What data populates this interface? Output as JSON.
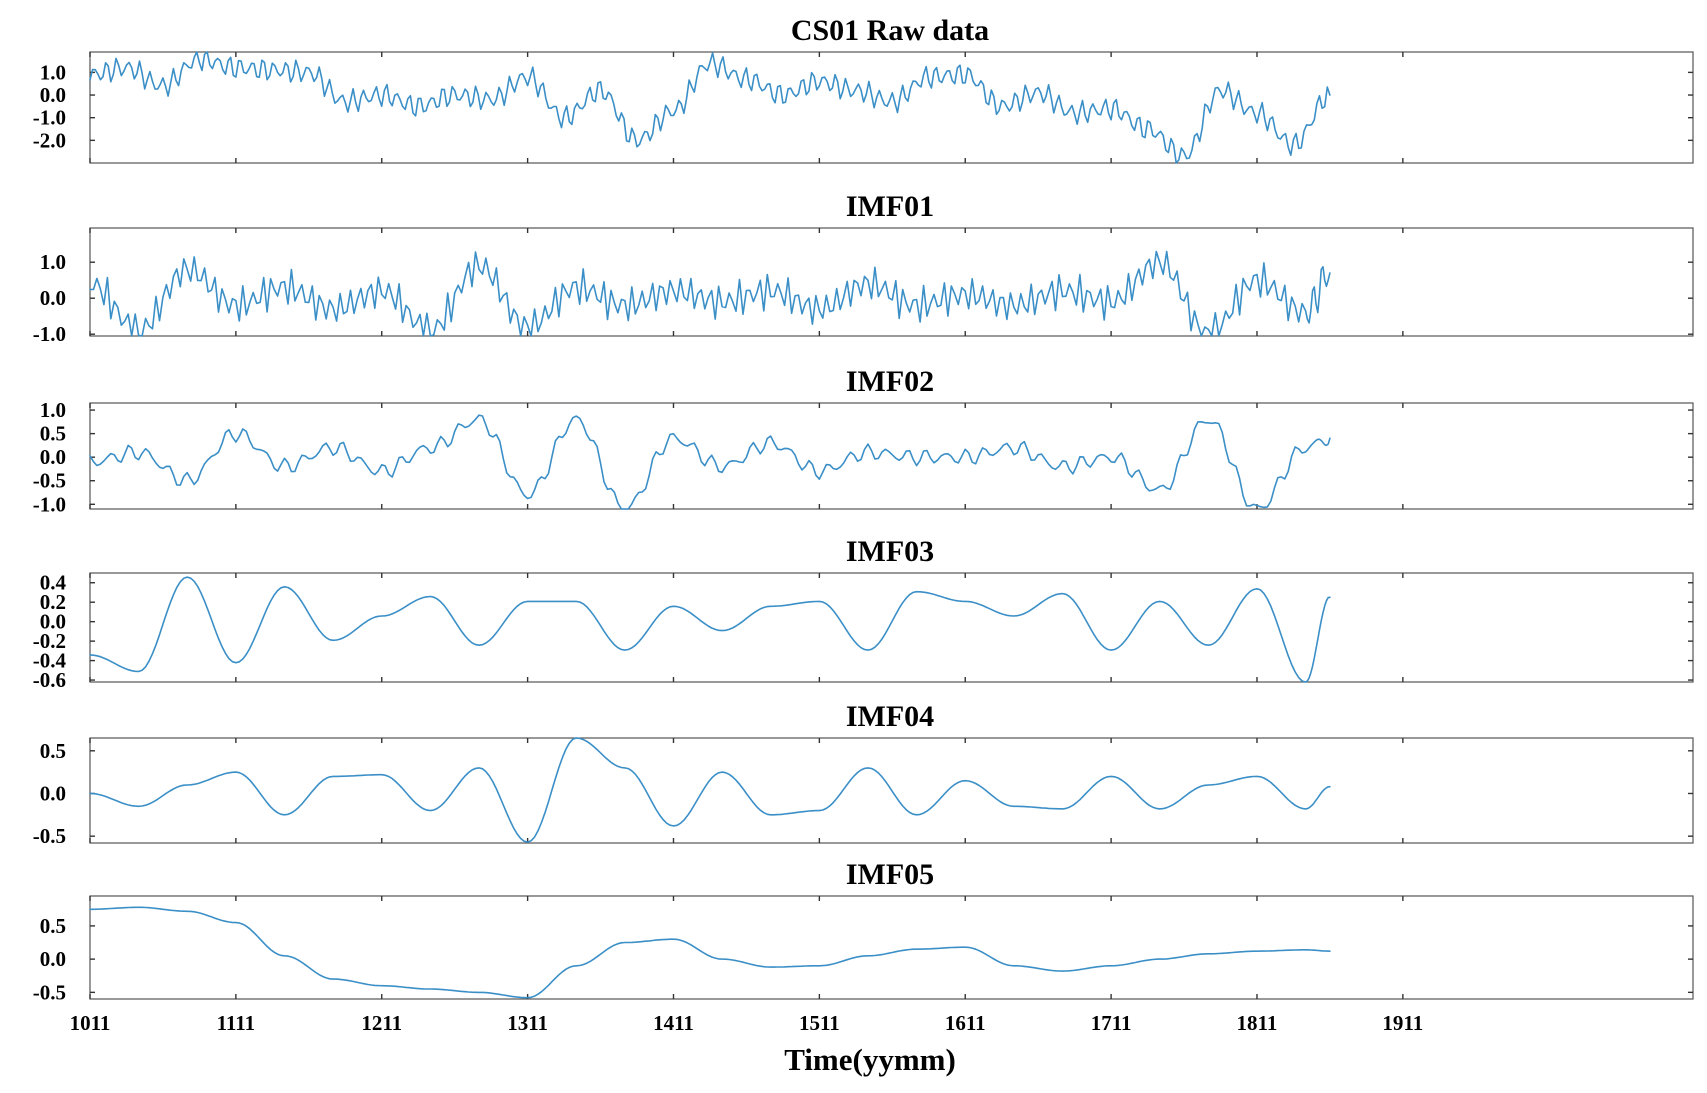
{
  "figure": {
    "xlabel": "Time(yymm)",
    "x_tick_labels": [
      "1011",
      "1111",
      "1211",
      "1311",
      "1411",
      "1511",
      "1611",
      "1711",
      "1811",
      "1911"
    ],
    "line_color": "#3b8fc7"
  },
  "chart_data": [
    {
      "type": "line",
      "title": "CS01 Raw data",
      "xlabel": "",
      "ylabel": "",
      "x_tick_labels": [
        "1011",
        "1111",
        "1211",
        "1311",
        "1411",
        "1511",
        "1611",
        "1711",
        "1811",
        "1911"
      ],
      "y_ticks": [
        1.0,
        0.0,
        -1.0,
        -2.0
      ],
      "y_tick_labels": [
        "1.0",
        "0.0",
        "-1.0",
        "-2.0"
      ],
      "ylim": [
        -3.0,
        1.9
      ],
      "grid": false,
      "series": [
        {
          "x": [
            "1011",
            "1102",
            "1105",
            "1108",
            "1111",
            "1202",
            "1205",
            "1208",
            "1211",
            "1302",
            "1305",
            "1308",
            "1311",
            "1402",
            "1405",
            "1408",
            "1411",
            "1502",
            "1505",
            "1508",
            "1511",
            "1602",
            "1605",
            "1608",
            "1611",
            "1702",
            "1705",
            "1708",
            "1711",
            "1802",
            "1805",
            "1808",
            "1811",
            "1902",
            "1905"
          ],
          "values": [
            0.9,
            1.2,
            0.4,
            1.6,
            1.2,
            1.1,
            1.0,
            -0.3,
            0.0,
            -0.5,
            0.0,
            -0.2,
            0.8,
            -1.0,
            0.2,
            -2.0,
            -0.7,
            1.4,
            0.7,
            0.0,
            0.6,
            0.2,
            -0.3,
            0.8,
            0.9,
            -0.5,
            0.1,
            -0.8,
            -0.6,
            -1.5,
            -2.7,
            0.2,
            -0.8,
            -2.2,
            0.0
          ]
        }
      ]
    },
    {
      "type": "line",
      "title": "IMF01",
      "xlabel": "",
      "ylabel": "",
      "x_tick_labels": [
        "1011",
        "1111",
        "1211",
        "1311",
        "1411",
        "1511",
        "1611",
        "1711",
        "1811",
        "1911"
      ],
      "y_ticks": [
        1.0,
        0.0,
        -1.0
      ],
      "y_tick_labels": [
        "1.0",
        "0.0",
        "-1.0"
      ],
      "ylim": [
        -1.05,
        1.95
      ],
      "grid": false,
      "series": [
        {
          "x": [
            "1011",
            "1103",
            "1107",
            "1111",
            "1203",
            "1207",
            "1211",
            "1303",
            "1307",
            "1311",
            "1403",
            "1407",
            "1411",
            "1503",
            "1507",
            "1511",
            "1603",
            "1607",
            "1611",
            "1703",
            "1707",
            "1711",
            "1803",
            "1807",
            "1811",
            "1903",
            "1905"
          ],
          "values": [
            0.4,
            -0.9,
            0.8,
            -0.2,
            0.3,
            -0.3,
            0.2,
            -0.9,
            0.9,
            -0.8,
            0.3,
            -0.2,
            0.2,
            -0.1,
            0.2,
            -0.3,
            0.4,
            -0.2,
            0.1,
            -0.2,
            0.2,
            -0.1,
            1.0,
            -1.0,
            0.5,
            -0.4,
            0.7
          ]
        }
      ]
    },
    {
      "type": "line",
      "title": "IMF02",
      "xlabel": "",
      "ylabel": "",
      "x_tick_labels": [
        "1011",
        "1111",
        "1211",
        "1311",
        "1411",
        "1511",
        "1611",
        "1711",
        "1811",
        "1911"
      ],
      "y_ticks": [
        1.0,
        0.5,
        0.0,
        -0.5,
        -1.0
      ],
      "y_tick_labels": [
        "1.0",
        "0.5",
        "0.0",
        "-0.5",
        "-1.0"
      ],
      "ylim": [
        -1.1,
        1.15
      ],
      "grid": false,
      "series": [
        {
          "x": [
            "1011",
            "1103",
            "1107",
            "1111",
            "1203",
            "1207",
            "1211",
            "1303",
            "1307",
            "1311",
            "1403",
            "1407",
            "1411",
            "1503",
            "1507",
            "1511",
            "1603",
            "1607",
            "1611",
            "1703",
            "1707",
            "1711",
            "1803",
            "1807",
            "1811",
            "1903",
            "1905"
          ],
          "values": [
            -0.1,
            0.1,
            -0.5,
            0.5,
            -0.2,
            0.2,
            -0.3,
            0.2,
            0.8,
            -0.8,
            0.8,
            -1.1,
            0.4,
            -0.2,
            0.3,
            -0.3,
            0.1,
            0.0,
            0.0,
            0.2,
            -0.2,
            0.0,
            -0.7,
            0.8,
            -1.1,
            0.2,
            0.4
          ]
        }
      ]
    },
    {
      "type": "line",
      "title": "IMF03",
      "xlabel": "",
      "ylabel": "",
      "x_tick_labels": [
        "1011",
        "1111",
        "1211",
        "1311",
        "1411",
        "1511",
        "1611",
        "1711",
        "1811",
        "1911"
      ],
      "y_ticks": [
        0.4,
        0.2,
        0.0,
        -0.2,
        -0.4,
        -0.6
      ],
      "y_tick_labels": [
        "0.4",
        "0.2",
        "0.0",
        "-0.2",
        "-0.4",
        "-0.6"
      ],
      "ylim": [
        -0.62,
        0.5
      ],
      "grid": false,
      "series": [
        {
          "x": [
            "1011",
            "1103",
            "1107",
            "1111",
            "1203",
            "1207",
            "1211",
            "1303",
            "1307",
            "1311",
            "1403",
            "1407",
            "1411",
            "1503",
            "1507",
            "1511",
            "1603",
            "1607",
            "1611",
            "1703",
            "1707",
            "1711",
            "1803",
            "1807",
            "1811",
            "1903",
            "1905"
          ],
          "values": [
            -0.35,
            -0.52,
            0.45,
            -0.43,
            0.35,
            -0.2,
            0.05,
            0.25,
            -0.25,
            0.2,
            0.2,
            -0.3,
            0.15,
            -0.1,
            0.15,
            0.2,
            -0.3,
            0.3,
            0.2,
            0.05,
            0.28,
            -0.3,
            0.2,
            -0.25,
            0.33,
            -0.63,
            0.25
          ]
        }
      ]
    },
    {
      "type": "line",
      "title": "IMF04",
      "xlabel": "",
      "ylabel": "",
      "x_tick_labels": [
        "1011",
        "1111",
        "1211",
        "1311",
        "1411",
        "1511",
        "1611",
        "1711",
        "1811",
        "1911"
      ],
      "y_ticks": [
        0.5,
        0.0,
        -0.5
      ],
      "y_tick_labels": [
        "0.5",
        "0.0",
        "-0.5"
      ],
      "ylim": [
        -0.58,
        0.65
      ],
      "grid": false,
      "series": [
        {
          "x": [
            "1011",
            "1103",
            "1107",
            "1111",
            "1203",
            "1207",
            "1211",
            "1303",
            "1307",
            "1311",
            "1403",
            "1407",
            "1411",
            "1503",
            "1507",
            "1511",
            "1603",
            "1607",
            "1611",
            "1703",
            "1707",
            "1711",
            "1803",
            "1807",
            "1811",
            "1903",
            "1905"
          ],
          "values": [
            0.0,
            -0.15,
            0.1,
            0.25,
            -0.25,
            0.2,
            0.22,
            -0.2,
            0.3,
            -0.57,
            0.65,
            0.3,
            -0.38,
            0.25,
            -0.25,
            -0.2,
            0.3,
            -0.25,
            0.15,
            -0.15,
            -0.18,
            0.2,
            -0.18,
            0.1,
            0.2,
            -0.18,
            0.08
          ]
        }
      ]
    },
    {
      "type": "line",
      "title": "IMF05",
      "xlabel": "Time(yymm)",
      "ylabel": "",
      "x_tick_labels": [
        "1011",
        "1111",
        "1211",
        "1311",
        "1411",
        "1511",
        "1611",
        "1711",
        "1811",
        "1911"
      ],
      "y_ticks": [
        0.5,
        0.0,
        -0.5
      ],
      "y_tick_labels": [
        "0.5",
        "0.0",
        "-0.5"
      ],
      "ylim": [
        -0.6,
        0.95
      ],
      "grid": false,
      "series": [
        {
          "x": [
            "1011",
            "1103",
            "1107",
            "1111",
            "1203",
            "1207",
            "1211",
            "1303",
            "1307",
            "1311",
            "1403",
            "1407",
            "1411",
            "1503",
            "1507",
            "1511",
            "1603",
            "1607",
            "1611",
            "1703",
            "1707",
            "1711",
            "1803",
            "1807",
            "1811",
            "1903",
            "1905"
          ],
          "values": [
            0.75,
            0.78,
            0.72,
            0.55,
            0.05,
            -0.3,
            -0.4,
            -0.45,
            -0.5,
            -0.58,
            -0.1,
            0.25,
            0.3,
            0.0,
            -0.12,
            -0.1,
            0.05,
            0.15,
            0.18,
            -0.1,
            -0.18,
            -0.1,
            0.0,
            0.08,
            0.12,
            0.14,
            0.12
          ]
        }
      ]
    }
  ]
}
